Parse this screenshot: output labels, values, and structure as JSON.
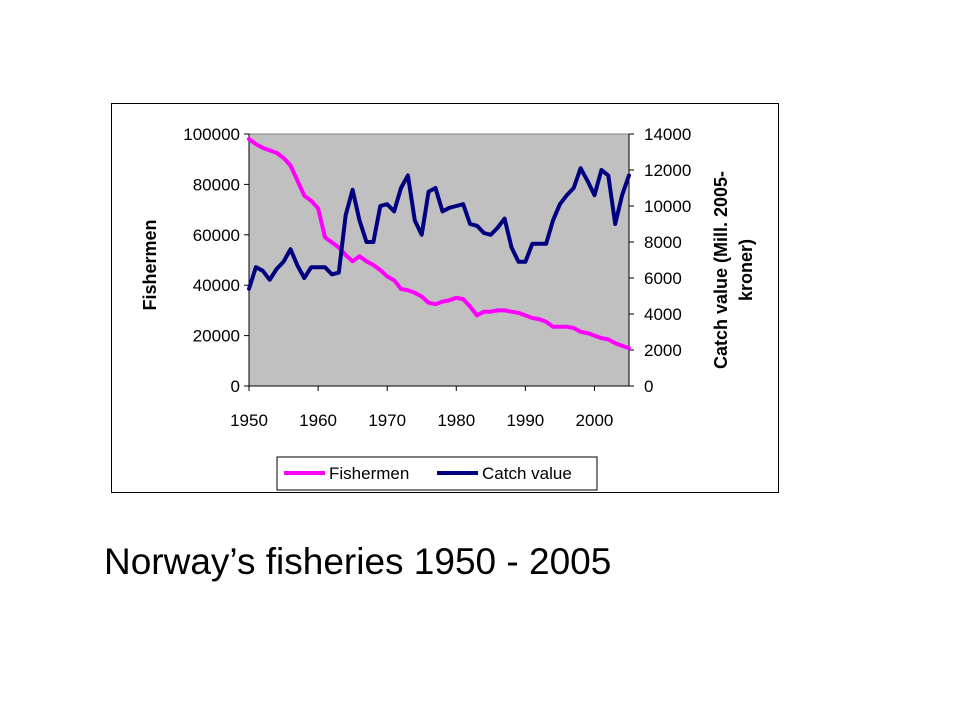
{
  "caption": "Norway’s fisheries 1950 - 2005",
  "chart_data": {
    "type": "line",
    "title": "",
    "xlabel": "",
    "ylabel": "Fishermen",
    "y2label_lines": [
      "Catch value (Mill. 2005-",
      "kroner)"
    ],
    "xlim": [
      1950,
      2005
    ],
    "ylim": [
      0,
      100000
    ],
    "y2lim": [
      0,
      14000
    ],
    "xticks": [
      "1950",
      "1960",
      "1970",
      "1980",
      "1990",
      "2000"
    ],
    "yticks": [
      "0",
      "20000",
      "40000",
      "60000",
      "80000",
      "100000"
    ],
    "y2ticks": [
      "0",
      "2000",
      "4000",
      "6000",
      "8000",
      "10000",
      "12000",
      "14000"
    ],
    "grid": false,
    "plot_background": "#c0c0c0",
    "legend_position": "bottom",
    "series": [
      {
        "name": "Fishermen",
        "axis": "left",
        "color": "#ff00ff",
        "x": [
          1950,
          1951,
          1952,
          1953,
          1954,
          1955,
          1956,
          1957,
          1958,
          1959,
          1960,
          1961,
          1962,
          1963,
          1964,
          1965,
          1966,
          1967,
          1968,
          1969,
          1970,
          1971,
          1972,
          1973,
          1974,
          1975,
          1976,
          1977,
          1978,
          1979,
          1980,
          1981,
          1982,
          1983,
          1984,
          1985,
          1986,
          1987,
          1988,
          1989,
          1990,
          1991,
          1992,
          1993,
          1994,
          1995,
          1996,
          1997,
          1998,
          1999,
          2000,
          2001,
          2002,
          2003,
          2004,
          2005
        ],
        "values": [
          98000,
          96000,
          94500,
          93500,
          92500,
          90500,
          87500,
          81500,
          75500,
          73500,
          70500,
          59000,
          57000,
          55000,
          52000,
          49500,
          51500,
          49500,
          48000,
          46000,
          43500,
          42000,
          38500,
          38000,
          37000,
          35500,
          33000,
          32500,
          33500,
          34000,
          35000,
          34500,
          31500,
          28000,
          29500,
          29500,
          30000,
          30000,
          29500,
          29000,
          28000,
          27000,
          26500,
          25500,
          23500,
          23500,
          23500,
          23000,
          21500,
          21000,
          20000,
          19000,
          18500,
          17000,
          16000,
          15000
        ]
      },
      {
        "name": "Catch value",
        "axis": "right",
        "color": "#000080",
        "x": [
          1950,
          1951,
          1952,
          1953,
          1954,
          1955,
          1956,
          1957,
          1958,
          1959,
          1960,
          1961,
          1962,
          1963,
          1964,
          1965,
          1966,
          1967,
          1968,
          1969,
          1970,
          1971,
          1972,
          1973,
          1974,
          1975,
          1976,
          1977,
          1978,
          1979,
          1980,
          1981,
          1982,
          1983,
          1984,
          1985,
          1986,
          1987,
          1988,
          1989,
          1990,
          1991,
          1992,
          1993,
          1994,
          1995,
          1996,
          1997,
          1998,
          1999,
          2000,
          2001,
          2002,
          2003,
          2004,
          2005
        ],
        "values": [
          5400,
          6600,
          6400,
          5900,
          6500,
          6900,
          7600,
          6700,
          6000,
          6600,
          6600,
          6600,
          6200,
          6300,
          9500,
          10900,
          9200,
          8000,
          8000,
          10000,
          10100,
          9700,
          11000,
          11700,
          9200,
          8400,
          10800,
          11000,
          9700,
          9900,
          10000,
          10100,
          9000,
          8900,
          8500,
          8400,
          8800,
          9300,
          7700,
          6900,
          6900,
          7900,
          7900,
          7900,
          9200,
          10100,
          10600,
          11000,
          12100,
          11400,
          10600,
          12000,
          11700,
          9000,
          10600,
          11700
        ]
      }
    ]
  }
}
